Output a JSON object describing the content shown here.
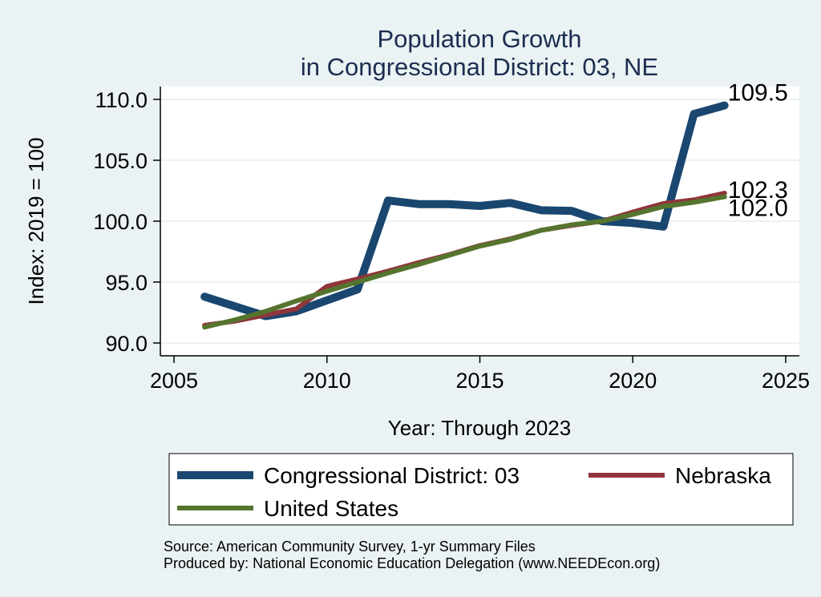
{
  "chart_data": {
    "type": "line",
    "title": "Population Growth",
    "subtitle": "in Congressional District: 03, NE",
    "xlabel": "Year: Through 2023",
    "ylabel": "Index: 2019 = 100",
    "xlim": [
      2005,
      2025
    ],
    "ylim": [
      90,
      110
    ],
    "x_ticks": [
      2005,
      2010,
      2015,
      2020,
      2025
    ],
    "x_tick_labels": [
      "2005",
      "2010",
      "2015",
      "2020",
      "2025"
    ],
    "y_ticks": [
      90,
      95,
      100,
      105,
      110
    ],
    "y_tick_labels": [
      "90.0",
      "95.0",
      "100.0",
      "105.0",
      "110.0"
    ],
    "grid": "horizontal",
    "legend_position": "bottom",
    "x": [
      2006,
      2007,
      2008,
      2009,
      2010,
      2011,
      2012,
      2013,
      2014,
      2015,
      2016,
      2017,
      2018,
      2019,
      2020,
      2021,
      2022,
      2023
    ],
    "series": [
      {
        "name": "Congressional District: 03",
        "color": "#1a476f",
        "values": [
          93.8,
          93.0,
          92.2,
          92.6,
          93.5,
          94.4,
          101.7,
          101.4,
          101.4,
          101.25,
          101.5,
          100.9,
          100.85,
          100.0,
          99.85,
          99.55,
          108.8,
          109.5
        ],
        "end_label": "109.5"
      },
      {
        "name": "Nebraska",
        "color": "#90353b",
        "values": [
          91.45,
          91.8,
          92.3,
          92.8,
          94.65,
          95.25,
          95.9,
          96.6,
          97.25,
          98.0,
          98.55,
          99.25,
          99.65,
          100.0,
          100.75,
          101.45,
          101.75,
          102.3
        ],
        "end_label": "102.3"
      },
      {
        "name": "United States",
        "color": "#55752f",
        "values": [
          91.3,
          91.9,
          92.6,
          93.45,
          94.25,
          95.0,
          95.75,
          96.45,
          97.2,
          97.95,
          98.5,
          99.25,
          99.7,
          100.0,
          100.55,
          101.2,
          101.55,
          102.0
        ],
        "end_label": "102.0"
      }
    ],
    "notes": [
      "Source: American Community Survey, 1-yr Summary Files",
      "Produced by: National Economic Education Delegation (www.NEEDEcon.org)"
    ]
  }
}
